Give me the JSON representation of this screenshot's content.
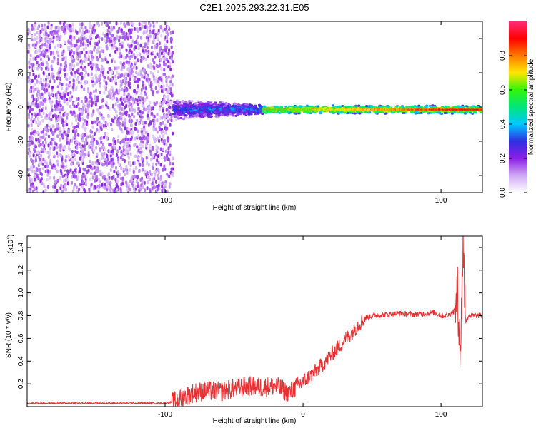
{
  "title": "C2E1.2025.293.22.31.E05",
  "colors": {
    "snr_line": "#e83232",
    "frame": "#000000",
    "background": "#ffffff"
  },
  "chart_data": [
    {
      "type": "heatmap",
      "xlabel": "Height of straight line (km)",
      "ylabel": "Frequency (Hz)",
      "xlim": [
        -200,
        130
      ],
      "ylim": [
        -50,
        50
      ],
      "x_ticks": [
        -100,
        100
      ],
      "y_ticks": [
        -40,
        -20,
        0,
        20,
        40
      ],
      "colorbar": {
        "label": "Normalized spectral amplitude",
        "range": [
          0,
          1
        ],
        "ticks": [
          0.0,
          0.2,
          0.4,
          0.6,
          0.8
        ],
        "colormap": [
          "#ffffff",
          "#cfa9f5",
          "#8b1fe6",
          "#2f2fe0",
          "#00c8ff",
          "#00e67a",
          "#32f50a",
          "#ffe600",
          "#ff7a00",
          "#ff0000",
          "#ff2d78"
        ]
      },
      "regions": [
        {
          "x_range": [
            -200,
            -95
          ],
          "freq_range": [
            -50,
            50
          ],
          "amplitude": [
            0.05,
            0.2
          ],
          "description": "scattered noise"
        },
        {
          "x_range": [
            -95,
            -30
          ],
          "freq_range": [
            -6,
            6
          ],
          "amplitude": [
            0.15,
            0.4
          ]
        },
        {
          "x_range": [
            -30,
            130
          ],
          "freq_range": [
            -3,
            2
          ],
          "amplitude": [
            0.35,
            0.9
          ]
        }
      ],
      "ridge_freq_hz": -1.5
    },
    {
      "type": "line",
      "xlabel": "Height of straight line (km)",
      "ylabel": "SNR (10 * v/v)",
      "y_multiplier_label": "(x10",
      "y_multiplier_exp": "4",
      "xlim": [
        -200,
        130
      ],
      "ylim": [
        0,
        1.5
      ],
      "x_ticks": [
        -100,
        0,
        100
      ],
      "x_tick_labels": [
        "-100",
        "0",
        "100"
      ],
      "y_ticks": [
        0.2,
        0.4,
        0.6,
        0.8,
        1.0,
        1.2,
        1.4
      ],
      "y_tick_labels": [
        "0.2",
        "0.4",
        "0.6",
        "0.8",
        "1.0",
        "1.2",
        "1.4"
      ],
      "series": [
        {
          "x": [
            -200,
            -150,
            -100,
            -95,
            -90,
            -80,
            -70,
            -60,
            -50,
            -40,
            -30,
            -20,
            -10,
            0,
            10,
            20,
            30,
            40,
            45,
            50,
            60,
            70,
            80,
            90,
            95,
            100,
            105,
            110,
            112,
            114,
            116,
            118,
            120,
            130
          ],
          "values": [
            0.03,
            0.03,
            0.03,
            0.04,
            0.06,
            0.12,
            0.14,
            0.13,
            0.16,
            0.18,
            0.17,
            0.18,
            0.12,
            0.22,
            0.32,
            0.45,
            0.58,
            0.72,
            0.78,
            0.8,
            0.81,
            0.82,
            0.81,
            0.82,
            0.83,
            0.8,
            0.8,
            0.85,
            1.0,
            0.45,
            1.45,
            0.75,
            0.8,
            0.8
          ]
        }
      ]
    }
  ]
}
